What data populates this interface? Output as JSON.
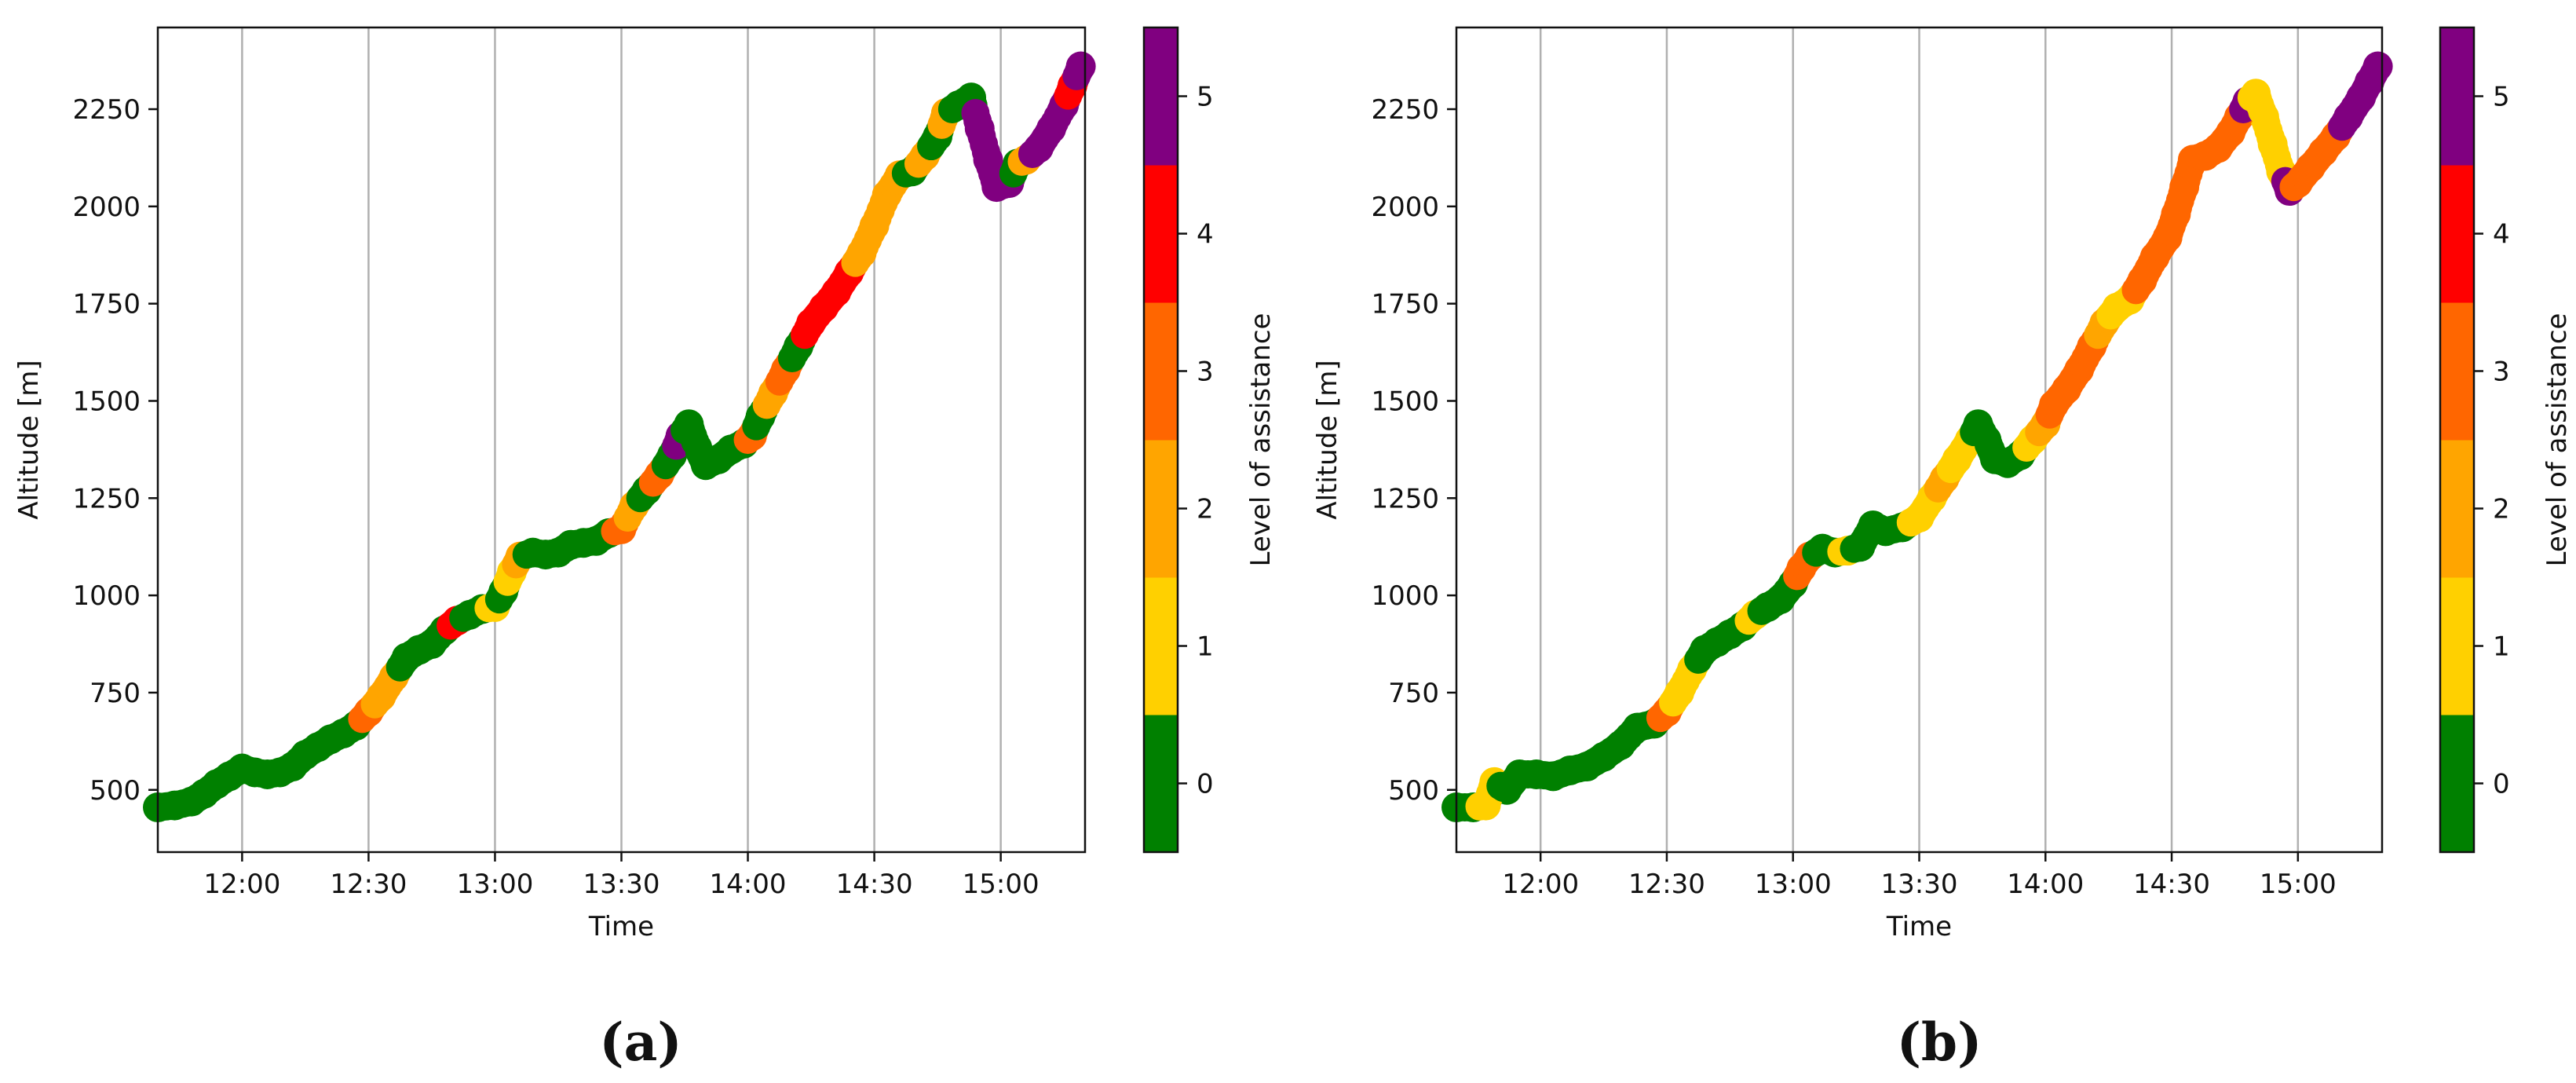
{
  "chart_data": [
    {
      "type": "scatter",
      "panel_label": "(a)",
      "xlabel": "Time",
      "ylabel": "Altitude [m]",
      "x_ticks": [
        "12:00",
        "12:30",
        "13:00",
        "13:30",
        "14:00",
        "14:30",
        "15:00"
      ],
      "y_ticks": [
        500,
        750,
        1000,
        1250,
        1500,
        1750,
        2000,
        2250
      ],
      "xlim": [
        "11:40",
        "15:20"
      ],
      "ylim": [
        340,
        2460
      ],
      "grid": "x-only",
      "colorbar": {
        "label": "Level of assistance",
        "levels": [
          0,
          1,
          2,
          3,
          4,
          5
        ],
        "colors": [
          "#008000",
          "#FFD000",
          "#FFA500",
          "#FF6600",
          "#FF0000",
          "#800080"
        ]
      },
      "points": [
        {
          "x": "11:40",
          "y": 455,
          "level": 0
        },
        {
          "x": "11:44",
          "y": 460,
          "level": 0
        },
        {
          "x": "11:48",
          "y": 470,
          "level": 0
        },
        {
          "x": "11:51",
          "y": 490,
          "level": 0
        },
        {
          "x": "11:54",
          "y": 515,
          "level": 0
        },
        {
          "x": "11:57",
          "y": 535,
          "level": 0
        },
        {
          "x": "12:00",
          "y": 555,
          "level": 0
        },
        {
          "x": "12:03",
          "y": 545,
          "level": 0
        },
        {
          "x": "12:06",
          "y": 540,
          "level": 0
        },
        {
          "x": "12:09",
          "y": 545,
          "level": 0
        },
        {
          "x": "12:12",
          "y": 560,
          "level": 0
        },
        {
          "x": "12:15",
          "y": 590,
          "level": 0
        },
        {
          "x": "12:18",
          "y": 610,
          "level": 0
        },
        {
          "x": "12:21",
          "y": 630,
          "level": 0
        },
        {
          "x": "12:24",
          "y": 645,
          "level": 0
        },
        {
          "x": "12:27",
          "y": 665,
          "level": 0
        },
        {
          "x": "12:30",
          "y": 700,
          "level": 3
        },
        {
          "x": "12:33",
          "y": 740,
          "level": 2
        },
        {
          "x": "12:36",
          "y": 790,
          "level": 2
        },
        {
          "x": "12:39",
          "y": 840,
          "level": 0
        },
        {
          "x": "12:42",
          "y": 860,
          "level": 0
        },
        {
          "x": "12:45",
          "y": 875,
          "level": 0
        },
        {
          "x": "12:48",
          "y": 910,
          "level": 0
        },
        {
          "x": "12:51",
          "y": 935,
          "level": 4
        },
        {
          "x": "12:54",
          "y": 950,
          "level": 0
        },
        {
          "x": "12:57",
          "y": 965,
          "level": 0
        },
        {
          "x": "13:00",
          "y": 970,
          "level": 1
        },
        {
          "x": "13:02",
          "y": 1010,
          "level": 0
        },
        {
          "x": "13:04",
          "y": 1060,
          "level": 1
        },
        {
          "x": "13:06",
          "y": 1100,
          "level": 2
        },
        {
          "x": "13:09",
          "y": 1110,
          "level": 0
        },
        {
          "x": "13:12",
          "y": 1105,
          "level": 0
        },
        {
          "x": "13:15",
          "y": 1110,
          "level": 0
        },
        {
          "x": "13:18",
          "y": 1130,
          "level": 0
        },
        {
          "x": "13:21",
          "y": 1135,
          "level": 0
        },
        {
          "x": "13:24",
          "y": 1140,
          "level": 0
        },
        {
          "x": "13:27",
          "y": 1160,
          "level": 0
        },
        {
          "x": "13:30",
          "y": 1170,
          "level": 3
        },
        {
          "x": "13:33",
          "y": 1230,
          "level": 2
        },
        {
          "x": "13:36",
          "y": 1270,
          "level": 0
        },
        {
          "x": "13:39",
          "y": 1310,
          "level": 3
        },
        {
          "x": "13:42",
          "y": 1360,
          "level": 0
        },
        {
          "x": "13:44",
          "y": 1410,
          "level": 5
        },
        {
          "x": "13:46",
          "y": 1440,
          "level": 0
        },
        {
          "x": "13:48",
          "y": 1380,
          "level": 0
        },
        {
          "x": "13:50",
          "y": 1335,
          "level": 0
        },
        {
          "x": "13:53",
          "y": 1350,
          "level": 0
        },
        {
          "x": "13:56",
          "y": 1375,
          "level": 0
        },
        {
          "x": "13:59",
          "y": 1390,
          "level": 0
        },
        {
          "x": "14:01",
          "y": 1410,
          "level": 3
        },
        {
          "x": "14:03",
          "y": 1460,
          "level": 0
        },
        {
          "x": "14:06",
          "y": 1520,
          "level": 2
        },
        {
          "x": "14:09",
          "y": 1580,
          "level": 3
        },
        {
          "x": "14:12",
          "y": 1640,
          "level": 0
        },
        {
          "x": "14:15",
          "y": 1700,
          "level": 4
        },
        {
          "x": "14:18",
          "y": 1740,
          "level": 4
        },
        {
          "x": "14:21",
          "y": 1780,
          "level": 4
        },
        {
          "x": "14:24",
          "y": 1830,
          "level": 4
        },
        {
          "x": "14:27",
          "y": 1880,
          "level": 2
        },
        {
          "x": "14:30",
          "y": 1950,
          "level": 2
        },
        {
          "x": "14:33",
          "y": 2030,
          "level": 2
        },
        {
          "x": "14:36",
          "y": 2080,
          "level": 2
        },
        {
          "x": "14:39",
          "y": 2090,
          "level": 0
        },
        {
          "x": "14:42",
          "y": 2130,
          "level": 2
        },
        {
          "x": "14:45",
          "y": 2180,
          "level": 0
        },
        {
          "x": "14:47",
          "y": 2240,
          "level": 2
        },
        {
          "x": "14:50",
          "y": 2260,
          "level": 0
        },
        {
          "x": "14:53",
          "y": 2280,
          "level": 0
        },
        {
          "x": "14:55",
          "y": 2200,
          "level": 5
        },
        {
          "x": "14:57",
          "y": 2120,
          "level": 5
        },
        {
          "x": "14:59",
          "y": 2050,
          "level": 5
        },
        {
          "x": "15:02",
          "y": 2060,
          "level": 5
        },
        {
          "x": "15:04",
          "y": 2110,
          "level": 0
        },
        {
          "x": "15:06",
          "y": 2120,
          "level": 2
        },
        {
          "x": "15:09",
          "y": 2150,
          "level": 5
        },
        {
          "x": "15:12",
          "y": 2200,
          "level": 5
        },
        {
          "x": "15:15",
          "y": 2260,
          "level": 5
        },
        {
          "x": "15:17",
          "y": 2310,
          "level": 4
        },
        {
          "x": "15:19",
          "y": 2360,
          "level": 5
        }
      ]
    },
    {
      "type": "scatter",
      "panel_label": "(b)",
      "xlabel": "Time",
      "ylabel": "Altitude [m]",
      "x_ticks": [
        "12:00",
        "12:30",
        "13:00",
        "13:30",
        "14:00",
        "14:30",
        "15:00"
      ],
      "y_ticks": [
        500,
        750,
        1000,
        1250,
        1500,
        1750,
        2000,
        2250
      ],
      "xlim": [
        "11:40",
        "15:20"
      ],
      "ylim": [
        340,
        2460
      ],
      "grid": "x-only",
      "colorbar": {
        "label": "Level of assistance",
        "levels": [
          0,
          1,
          2,
          3,
          4,
          5
        ],
        "colors": [
          "#008000",
          "#FFD000",
          "#FFA500",
          "#FF6600",
          "#FF0000",
          "#800080"
        ]
      },
      "points": [
        {
          "x": "11:40",
          "y": 455,
          "level": 0
        },
        {
          "x": "11:44",
          "y": 455,
          "level": 0
        },
        {
          "x": "11:47",
          "y": 460,
          "level": 1
        },
        {
          "x": "11:49",
          "y": 520,
          "level": 1
        },
        {
          "x": "11:52",
          "y": 500,
          "level": 0
        },
        {
          "x": "11:55",
          "y": 540,
          "level": 0
        },
        {
          "x": "11:59",
          "y": 540,
          "level": 0
        },
        {
          "x": "12:03",
          "y": 535,
          "level": 0
        },
        {
          "x": "12:07",
          "y": 550,
          "level": 0
        },
        {
          "x": "12:11",
          "y": 560,
          "level": 0
        },
        {
          "x": "12:15",
          "y": 585,
          "level": 0
        },
        {
          "x": "12:19",
          "y": 615,
          "level": 0
        },
        {
          "x": "12:23",
          "y": 660,
          "level": 0
        },
        {
          "x": "12:27",
          "y": 670,
          "level": 0
        },
        {
          "x": "12:30",
          "y": 700,
          "level": 3
        },
        {
          "x": "12:33",
          "y": 750,
          "level": 1
        },
        {
          "x": "12:36",
          "y": 810,
          "level": 1
        },
        {
          "x": "12:39",
          "y": 860,
          "level": 0
        },
        {
          "x": "12:42",
          "y": 880,
          "level": 0
        },
        {
          "x": "12:45",
          "y": 900,
          "level": 0
        },
        {
          "x": "12:48",
          "y": 920,
          "level": 0
        },
        {
          "x": "12:51",
          "y": 950,
          "level": 1
        },
        {
          "x": "12:54",
          "y": 970,
          "level": 0
        },
        {
          "x": "12:57",
          "y": 990,
          "level": 0
        },
        {
          "x": "13:00",
          "y": 1030,
          "level": 0
        },
        {
          "x": "13:02",
          "y": 1070,
          "level": 3
        },
        {
          "x": "13:04",
          "y": 1100,
          "level": 3
        },
        {
          "x": "13:07",
          "y": 1120,
          "level": 0
        },
        {
          "x": "13:10",
          "y": 1110,
          "level": 0
        },
        {
          "x": "13:13",
          "y": 1115,
          "level": 1
        },
        {
          "x": "13:16",
          "y": 1125,
          "level": 0
        },
        {
          "x": "13:19",
          "y": 1180,
          "level": 0
        },
        {
          "x": "13:22",
          "y": 1165,
          "level": 0
        },
        {
          "x": "13:26",
          "y": 1175,
          "level": 0
        },
        {
          "x": "13:30",
          "y": 1200,
          "level": 1
        },
        {
          "x": "13:33",
          "y": 1250,
          "level": 1
        },
        {
          "x": "13:36",
          "y": 1300,
          "level": 2
        },
        {
          "x": "13:39",
          "y": 1350,
          "level": 1
        },
        {
          "x": "13:42",
          "y": 1400,
          "level": 1
        },
        {
          "x": "13:44",
          "y": 1440,
          "level": 0
        },
        {
          "x": "13:46",
          "y": 1400,
          "level": 0
        },
        {
          "x": "13:48",
          "y": 1350,
          "level": 0
        },
        {
          "x": "13:51",
          "y": 1340,
          "level": 0
        },
        {
          "x": "13:54",
          "y": 1360,
          "level": 0
        },
        {
          "x": "13:57",
          "y": 1400,
          "level": 1
        },
        {
          "x": "14:00",
          "y": 1440,
          "level": 2
        },
        {
          "x": "14:02",
          "y": 1490,
          "level": 3
        },
        {
          "x": "14:05",
          "y": 1530,
          "level": 3
        },
        {
          "x": "14:08",
          "y": 1580,
          "level": 3
        },
        {
          "x": "14:11",
          "y": 1640,
          "level": 3
        },
        {
          "x": "14:14",
          "y": 1700,
          "level": 2
        },
        {
          "x": "14:17",
          "y": 1740,
          "level": 1
        },
        {
          "x": "14:20",
          "y": 1760,
          "level": 1
        },
        {
          "x": "14:23",
          "y": 1810,
          "level": 3
        },
        {
          "x": "14:26",
          "y": 1870,
          "level": 3
        },
        {
          "x": "14:29",
          "y": 1920,
          "level": 3
        },
        {
          "x": "14:31",
          "y": 1980,
          "level": 3
        },
        {
          "x": "14:33",
          "y": 2050,
          "level": 3
        },
        {
          "x": "14:35",
          "y": 2120,
          "level": 3
        },
        {
          "x": "14:38",
          "y": 2130,
          "level": 3
        },
        {
          "x": "14:41",
          "y": 2150,
          "level": 3
        },
        {
          "x": "14:44",
          "y": 2190,
          "level": 3
        },
        {
          "x": "14:46",
          "y": 2230,
          "level": 3
        },
        {
          "x": "14:48",
          "y": 2270,
          "level": 5
        },
        {
          "x": "14:50",
          "y": 2290,
          "level": 1
        },
        {
          "x": "14:52",
          "y": 2230,
          "level": 1
        },
        {
          "x": "14:54",
          "y": 2160,
          "level": 1
        },
        {
          "x": "14:56",
          "y": 2090,
          "level": 1
        },
        {
          "x": "14:58",
          "y": 2040,
          "level": 5
        },
        {
          "x": "15:00",
          "y": 2060,
          "level": 3
        },
        {
          "x": "15:03",
          "y": 2100,
          "level": 3
        },
        {
          "x": "15:06",
          "y": 2140,
          "level": 3
        },
        {
          "x": "15:09",
          "y": 2180,
          "level": 3
        },
        {
          "x": "15:12",
          "y": 2230,
          "level": 5
        },
        {
          "x": "15:15",
          "y": 2280,
          "level": 5
        },
        {
          "x": "15:17",
          "y": 2320,
          "level": 5
        },
        {
          "x": "15:19",
          "y": 2360,
          "level": 5
        }
      ]
    }
  ]
}
